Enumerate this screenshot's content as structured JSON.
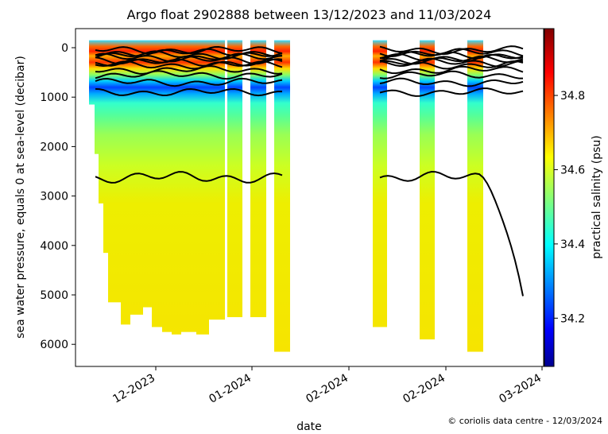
{
  "chart_data": {
    "type": "heatmap",
    "title": "Argo float 2902888 between 13/12/2023 and 11/03/2024",
    "xlabel": "date",
    "ylabel": "sea water pressure, equals 0 at sea-level (decibar)",
    "colorbar_label": "practical salinity (psu)",
    "credit": "© coriolis data centre - 12/03/2024",
    "ylim": [
      6400,
      -400
    ],
    "y_ticks": [
      0,
      1000,
      2000,
      3000,
      4000,
      5000,
      6000
    ],
    "x_tick_labels": [
      "12-2023",
      "01-2024",
      "02-2024",
      "02-2024",
      "03-2024"
    ],
    "color_range": [
      34.07,
      34.98
    ],
    "colorbar_ticks": [
      34.2,
      34.4,
      34.6,
      34.8
    ],
    "profiles_max_pressure_decibar": [
      1150,
      2150,
      3150,
      4150,
      5150,
      5600,
      5400,
      5250,
      5650,
      5750,
      5800,
      5750,
      5800,
      5500,
      5450,
      5450,
      6150,
      5650,
      5900,
      6150
    ],
    "contour_depths_decibar": [
      50,
      100,
      150,
      200,
      250,
      300,
      350,
      450,
      550,
      700,
      900,
      2620
    ]
  },
  "colorbar": {
    "colors": [
      "#00008f",
      "#0000ff",
      "#00ffff",
      "#7fff7f",
      "#ffff00",
      "#ff0000",
      "#800000"
    ]
  }
}
